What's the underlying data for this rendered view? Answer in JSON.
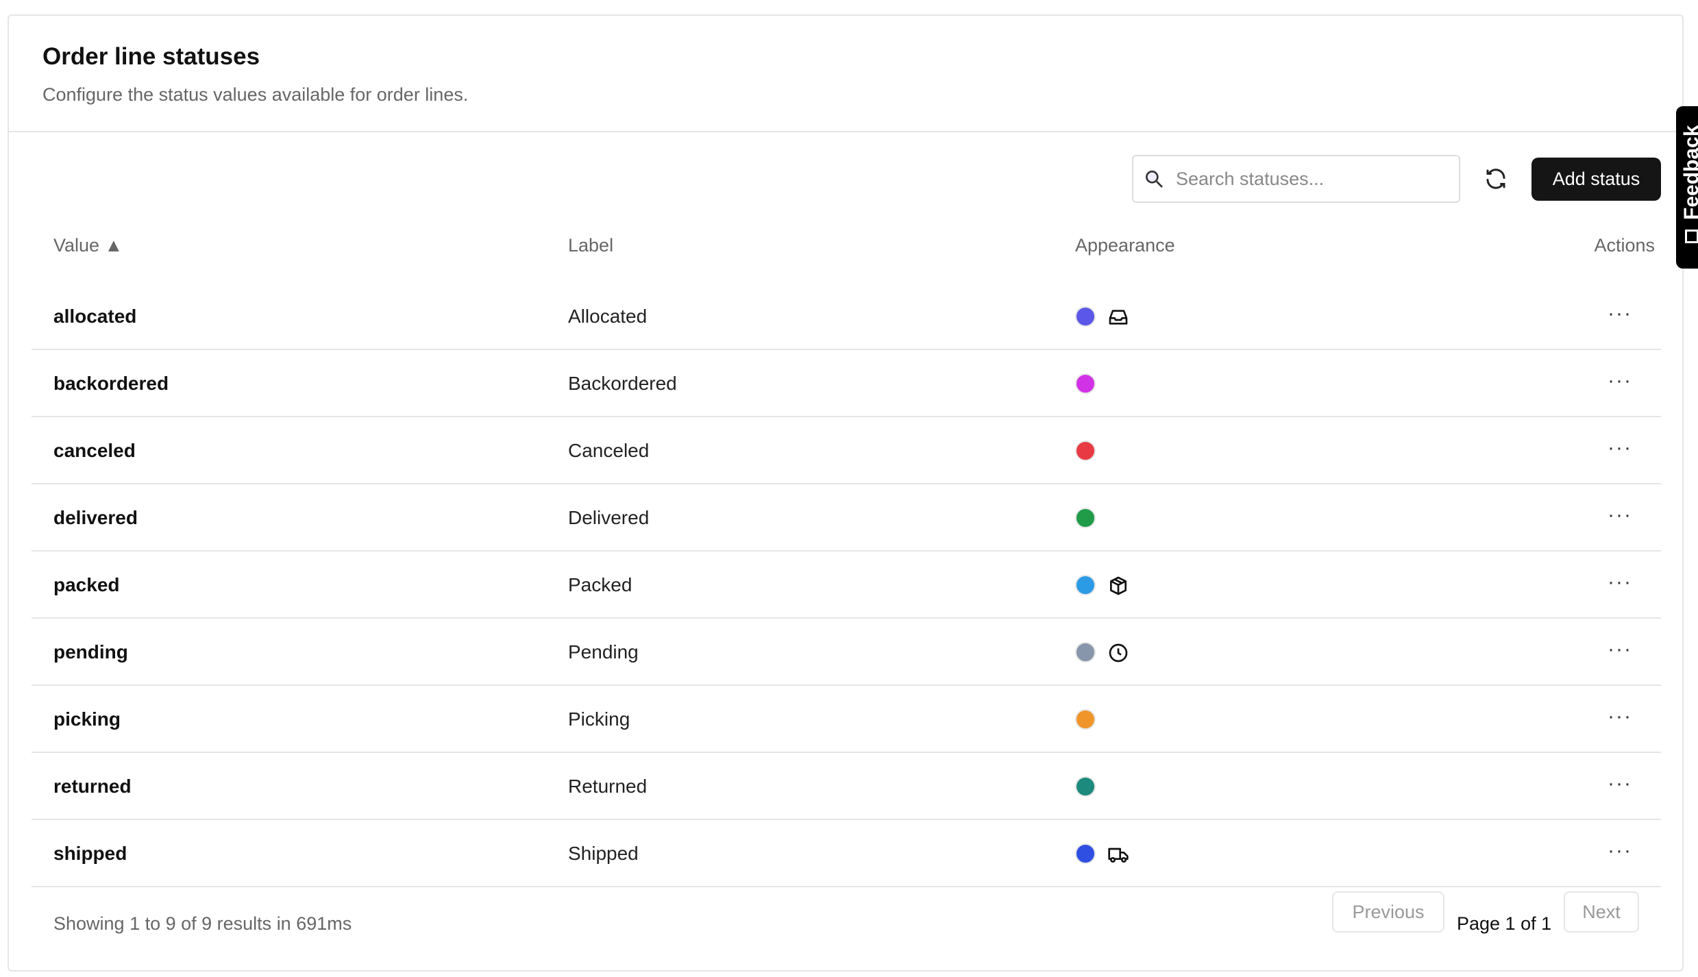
{
  "header": {
    "title": "Order line statuses",
    "subtitle": "Configure the status values available for order lines."
  },
  "toolbar": {
    "search_placeholder": "Search statuses...",
    "add_label": "Add status"
  },
  "columns": {
    "value": "Value ▲",
    "label": "Label",
    "appearance": "Appearance",
    "actions": "Actions"
  },
  "rows": [
    {
      "value": "allocated",
      "label": "Allocated",
      "color": "#5b57e8",
      "icon": "inbox-icon"
    },
    {
      "value": "backordered",
      "label": "Backordered",
      "color": "#d232e6",
      "icon": null
    },
    {
      "value": "canceled",
      "label": "Canceled",
      "color": "#e83a43",
      "icon": null
    },
    {
      "value": "delivered",
      "label": "Delivered",
      "color": "#209b48",
      "icon": null
    },
    {
      "value": "packed",
      "label": "Packed",
      "color": "#2b9be6",
      "icon": "package-icon"
    },
    {
      "value": "pending",
      "label": "Pending",
      "color": "#8896ab",
      "icon": "clock-icon"
    },
    {
      "value": "picking",
      "label": "Picking",
      "color": "#f0952a",
      "icon": null
    },
    {
      "value": "returned",
      "label": "Returned",
      "color": "#1c8a7c",
      "icon": null
    },
    {
      "value": "shipped",
      "label": "Shipped",
      "color": "#2e4fe2",
      "icon": "truck-icon"
    }
  ],
  "footer": {
    "summary": "Showing 1 to 9 of 9 results in 691ms",
    "previous": "Previous",
    "page": "Page 1 of 1",
    "next": "Next"
  },
  "feedback": {
    "label": "Feedback"
  }
}
